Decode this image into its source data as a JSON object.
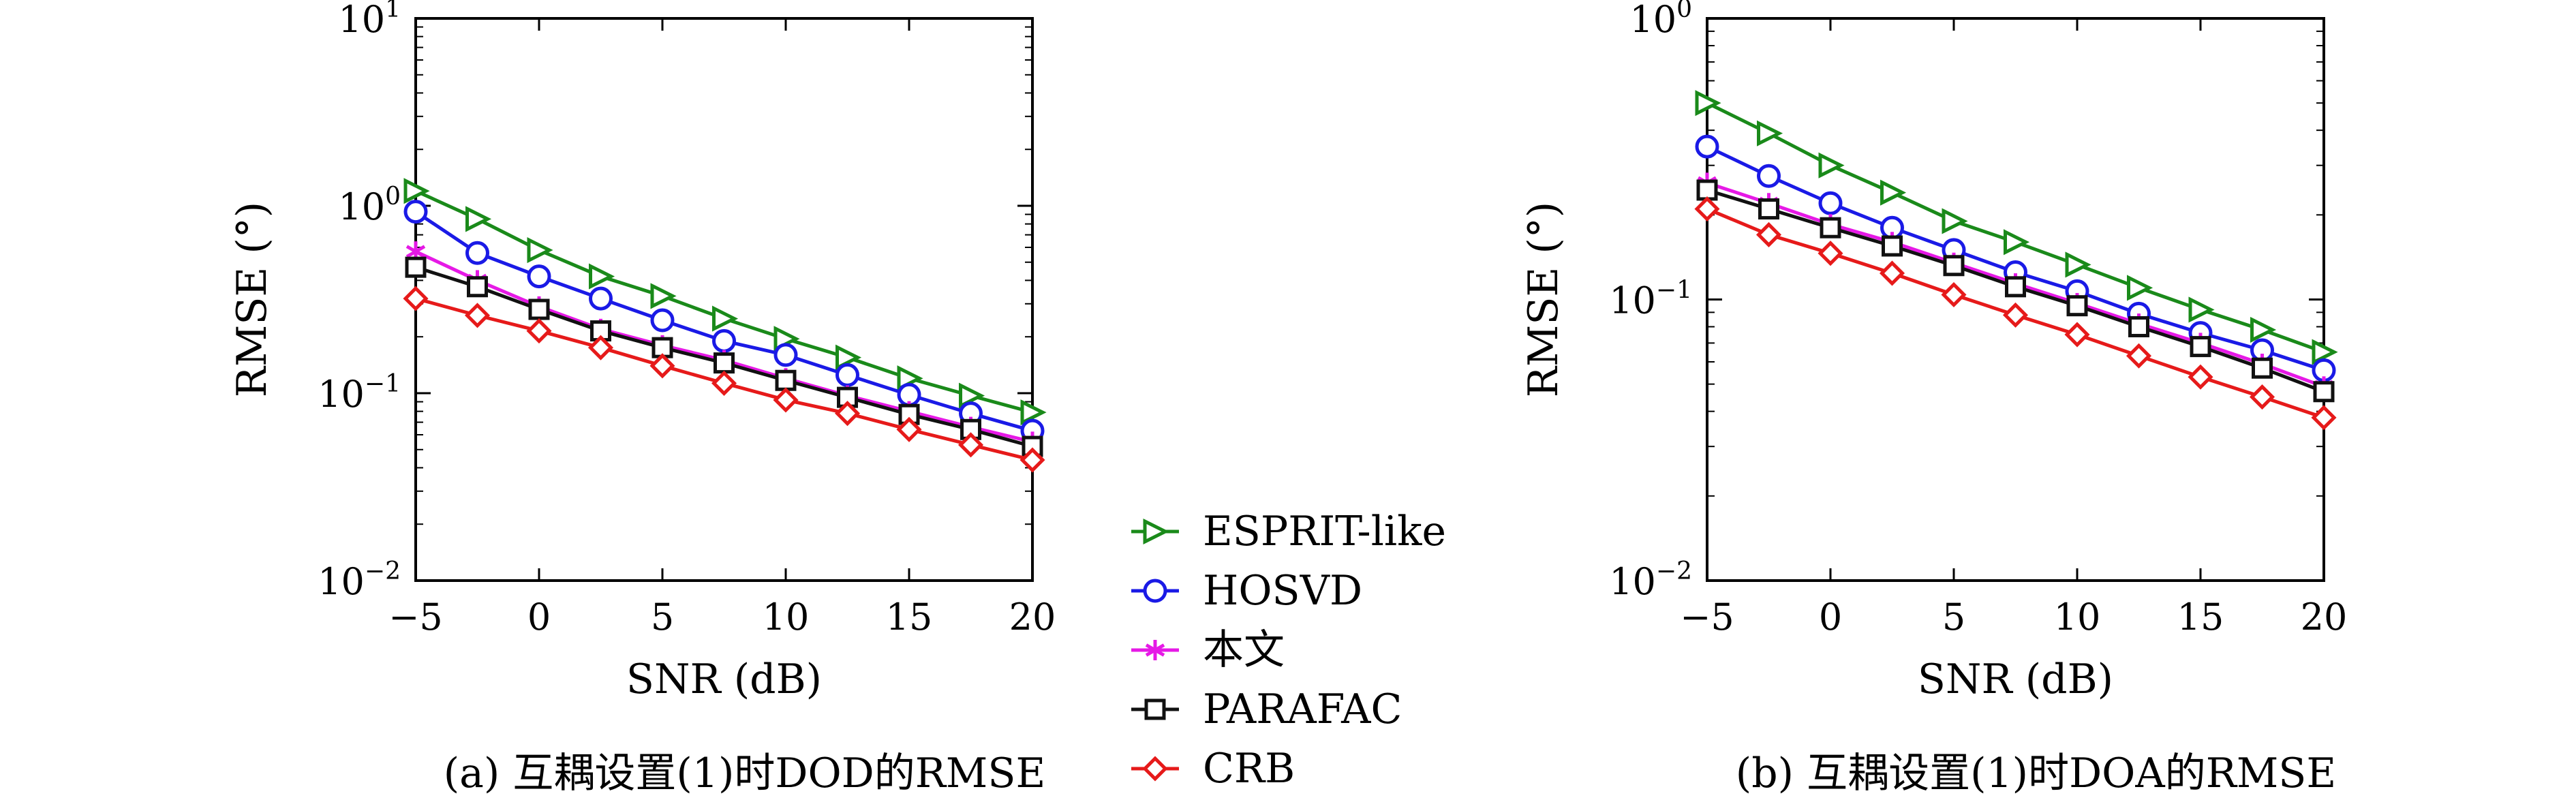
{
  "legend": {
    "entries": [
      {
        "label": "ESPRIT-like",
        "color": "#1a8a1a",
        "marker": "triangle-right"
      },
      {
        "label": "HOSVD",
        "color": "#1a1ae6",
        "marker": "circle"
      },
      {
        "label": "本文",
        "color": "#e619e6",
        "marker": "asterisk"
      },
      {
        "label": "PARAFAC",
        "color": "#111111",
        "marker": "square"
      },
      {
        "label": "CRB",
        "color": "#e61a1a",
        "marker": "diamond"
      }
    ]
  },
  "chart_data": [
    {
      "type": "line",
      "caption": "(a) 互耦设置(1)时DOD的RMSE",
      "xlabel": "SNR (dB)",
      "ylabel": "RMSE (°)",
      "yscale": "log",
      "xlim": [
        -5,
        20
      ],
      "ylim": [
        0.01,
        10
      ],
      "x": [
        -5,
        -2.5,
        0,
        2.5,
        5,
        7.5,
        10,
        12.5,
        15,
        17.5,
        20
      ],
      "xticks": [
        -5,
        0,
        5,
        10,
        15,
        20
      ],
      "yticks": [
        {
          "base": "10",
          "exp": "1",
          "value": 10
        },
        {
          "base": "10",
          "exp": "0",
          "value": 1
        },
        {
          "base": "10",
          "exp": "−1",
          "value": 0.1
        },
        {
          "base": "10",
          "exp": "−2",
          "value": 0.01
        }
      ],
      "series": [
        {
          "name": "ESPRIT-like",
          "values": [
            1.2,
            0.85,
            0.58,
            0.42,
            0.33,
            0.25,
            0.195,
            0.155,
            0.12,
            0.097,
            0.079
          ]
        },
        {
          "name": "HOSVD",
          "values": [
            0.93,
            0.56,
            0.42,
            0.32,
            0.245,
            0.19,
            0.16,
            0.125,
            0.098,
            0.078,
            0.063
          ]
        },
        {
          "name": "本文",
          "values": [
            0.57,
            0.4,
            0.29,
            0.22,
            0.18,
            0.15,
            0.12,
            0.097,
            0.08,
            0.066,
            0.055
          ]
        },
        {
          "name": "PARAFAC",
          "values": [
            0.47,
            0.37,
            0.28,
            0.215,
            0.175,
            0.145,
            0.117,
            0.095,
            0.077,
            0.064,
            0.052
          ]
        },
        {
          "name": "CRB",
          "values": [
            0.32,
            0.26,
            0.215,
            0.175,
            0.14,
            0.113,
            0.092,
            0.078,
            0.064,
            0.053,
            0.044
          ]
        }
      ]
    },
    {
      "type": "line",
      "caption": "(b) 互耦设置(1)时DOA的RMSE",
      "xlabel": "SNR (dB)",
      "ylabel": "RMSE (°)",
      "yscale": "log",
      "xlim": [
        -5,
        20
      ],
      "ylim": [
        0.01,
        1
      ],
      "x": [
        -5,
        -2.5,
        0,
        2.5,
        5,
        7.5,
        10,
        12.5,
        15,
        17.5,
        20
      ],
      "xticks": [
        -5,
        0,
        5,
        10,
        15,
        20
      ],
      "yticks": [
        {
          "base": "10",
          "exp": "0",
          "value": 1
        },
        {
          "base": "10",
          "exp": "−1",
          "value": 0.1
        },
        {
          "base": "10",
          "exp": "−2",
          "value": 0.01
        }
      ],
      "series": [
        {
          "name": "ESPRIT-like",
          "values": [
            0.5,
            0.39,
            0.3,
            0.24,
            0.19,
            0.16,
            0.133,
            0.11,
            0.092,
            0.078,
            0.065
          ]
        },
        {
          "name": "HOSVD",
          "values": [
            0.35,
            0.275,
            0.22,
            0.18,
            0.15,
            0.125,
            0.107,
            0.089,
            0.076,
            0.066,
            0.056
          ]
        },
        {
          "name": "本文",
          "values": [
            0.26,
            0.22,
            0.185,
            0.16,
            0.135,
            0.114,
            0.097,
            0.082,
            0.07,
            0.059,
            0.049
          ]
        },
        {
          "name": "PARAFAC",
          "values": [
            0.245,
            0.21,
            0.18,
            0.155,
            0.132,
            0.111,
            0.095,
            0.08,
            0.068,
            0.057,
            0.047
          ]
        },
        {
          "name": "CRB",
          "values": [
            0.21,
            0.17,
            0.146,
            0.124,
            0.104,
            0.088,
            0.075,
            0.063,
            0.053,
            0.045,
            0.038
          ]
        }
      ]
    }
  ]
}
